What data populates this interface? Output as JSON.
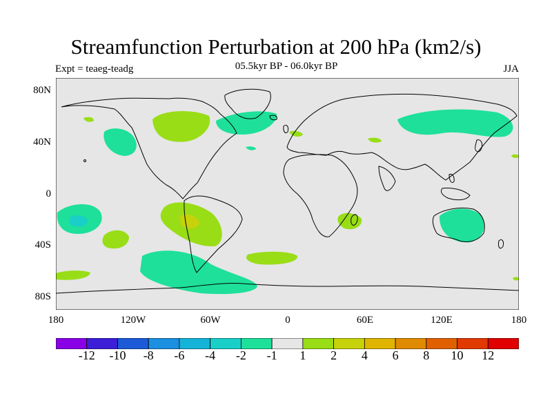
{
  "title": "Streamfunction Perturbation at 200 hPa (km2/s)",
  "experiment": "Expt = teaeg-teadg",
  "period": "05.5kyr BP - 06.0kyr BP",
  "season": "JJA",
  "axes": {
    "lat_labels": [
      "80N",
      "40N",
      "0",
      "40S",
      "80S"
    ],
    "lon_labels": [
      "180",
      "120W",
      "60W",
      "0",
      "60E",
      "120E",
      "180"
    ]
  },
  "colorbar": {
    "colors": [
      "#8a00e6",
      "#3c1fd6",
      "#1c5ad8",
      "#1b8fe0",
      "#16b3d8",
      "#19cfc8",
      "#1ee09a",
      "#e6e6e6",
      "#99dd17",
      "#c8d20a",
      "#e0b400",
      "#e08a00",
      "#e06000",
      "#e03a00",
      "#e00000"
    ],
    "labels": [
      "-12",
      "-10",
      "-8",
      "-6",
      "-4",
      "-2",
      "-1",
      "1",
      "2",
      "4",
      "6",
      "8",
      "10",
      "12"
    ]
  },
  "colors": {
    "land_sea_bg": "#e6e6e6",
    "neg_light": "#1ee09a",
    "neg_mid": "#19cfc8",
    "pos_light": "#99dd17",
    "pos_mid": "#c8d20a"
  }
}
